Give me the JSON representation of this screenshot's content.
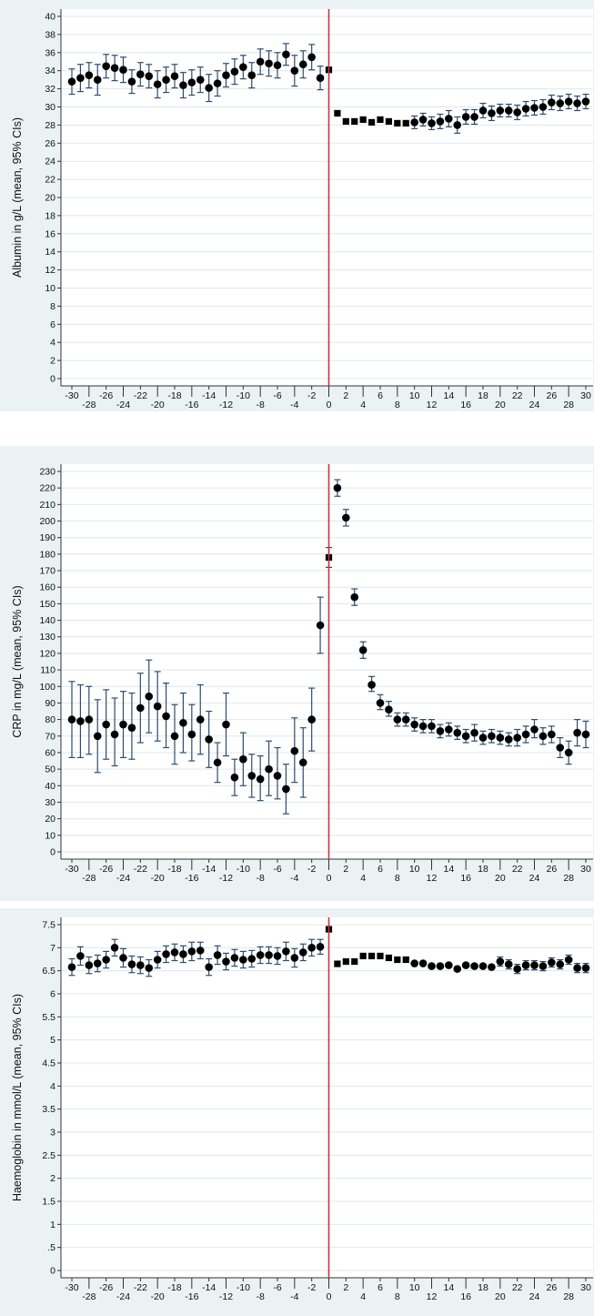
{
  "chart_data": [
    {
      "type": "scatter",
      "title": "",
      "xlabel": "",
      "ylabel": "Albumin in g/L (mean, 95% CIs)",
      "xlim": [
        -30,
        30
      ],
      "ylim": [
        0,
        40
      ],
      "x_ticks": [
        -30,
        -28,
        -26,
        -24,
        -22,
        -20,
        -18,
        -16,
        -14,
        -12,
        -10,
        -8,
        -6,
        -4,
        -2,
        0,
        2,
        4,
        6,
        8,
        10,
        12,
        14,
        16,
        18,
        20,
        22,
        24,
        26,
        28,
        30
      ],
      "y_ticks": [
        0,
        2,
        4,
        6,
        8,
        10,
        12,
        14,
        16,
        18,
        20,
        22,
        24,
        26,
        28,
        30,
        32,
        34,
        36,
        38,
        40
      ],
      "y_tick_labels": [
        "0",
        "2",
        "4",
        "6",
        "8",
        "10",
        "12",
        "14",
        "16",
        "18",
        "20",
        "22",
        "24",
        "26",
        "28",
        "30",
        "32",
        "34",
        "36",
        "38",
        "40"
      ],
      "reference_line_x": 0,
      "reference_line_color": "#cc3344",
      "grid": true,
      "series": [
        {
          "x": [
            -30,
            -29,
            -28,
            -27,
            -26,
            -25,
            -24,
            -23,
            -22,
            -21,
            -20,
            -19,
            -18,
            -17,
            -16,
            -15,
            -14,
            -13,
            -12,
            -11,
            -10,
            -9,
            -8,
            -7,
            -6,
            -5,
            -4,
            -3,
            -2,
            -1,
            0,
            1,
            2,
            3,
            4,
            5,
            6,
            7,
            8,
            9,
            10,
            11,
            12,
            13,
            14,
            15,
            16,
            17,
            18,
            19,
            20,
            21,
            22,
            23,
            24,
            25,
            26,
            27,
            28,
            29,
            30
          ],
          "y": [
            32.8,
            33.2,
            33.5,
            33.0,
            34.5,
            34.3,
            34.1,
            32.8,
            33.6,
            33.4,
            32.5,
            33.0,
            33.4,
            32.4,
            32.7,
            33.0,
            32.1,
            32.6,
            33.5,
            33.9,
            34.4,
            33.5,
            35.0,
            34.8,
            34.6,
            35.8,
            34.0,
            34.7,
            35.5,
            33.2,
            34.1,
            29.3,
            28.4,
            28.4,
            28.6,
            28.3,
            28.6,
            28.4,
            28.2,
            28.2,
            28.3,
            28.6,
            28.2,
            28.4,
            28.7,
            28.0,
            28.9,
            28.9,
            29.6,
            29.3,
            29.6,
            29.6,
            29.4,
            29.8,
            29.9,
            30.0,
            30.5,
            30.4,
            30.6,
            30.4,
            30.6
          ],
          "ci_low": [
            31.4,
            31.7,
            32.1,
            31.3,
            33.2,
            32.9,
            32.7,
            31.5,
            32.3,
            32.1,
            31.0,
            31.6,
            32.1,
            31.0,
            31.3,
            31.6,
            30.6,
            31.2,
            32.2,
            32.5,
            33.1,
            32.1,
            33.6,
            33.4,
            33.2,
            34.6,
            32.3,
            33.2,
            34.1,
            31.9,
            null,
            null,
            null,
            null,
            null,
            null,
            null,
            null,
            null,
            null,
            27.6,
            27.9,
            27.5,
            27.6,
            27.8,
            27.1,
            28.1,
            28.1,
            28.8,
            28.5,
            28.9,
            28.9,
            28.6,
            29.0,
            29.1,
            29.2,
            29.7,
            29.6,
            29.8,
            29.6,
            29.8
          ],
          "ci_high": [
            34.2,
            34.7,
            34.9,
            34.7,
            35.8,
            35.7,
            35.5,
            34.1,
            34.9,
            34.7,
            34.0,
            34.4,
            34.7,
            33.8,
            34.1,
            34.4,
            33.6,
            34.0,
            34.8,
            35.3,
            35.7,
            34.9,
            36.4,
            36.2,
            36.0,
            37.0,
            35.7,
            36.2,
            36.9,
            34.5,
            null,
            null,
            null,
            null,
            null,
            null,
            null,
            null,
            null,
            null,
            29.0,
            29.3,
            28.9,
            29.2,
            29.6,
            28.9,
            29.7,
            29.7,
            30.4,
            30.1,
            30.3,
            30.3,
            30.2,
            30.6,
            30.7,
            30.8,
            31.3,
            31.2,
            31.4,
            31.2,
            31.4
          ]
        }
      ]
    },
    {
      "type": "scatter",
      "title": "",
      "xlabel": "",
      "ylabel": "CRP in mg/L (mean, 95% CIs)",
      "xlim": [
        -30,
        30
      ],
      "ylim": [
        0,
        230
      ],
      "x_ticks": [
        -30,
        -28,
        -26,
        -24,
        -22,
        -20,
        -18,
        -16,
        -14,
        -12,
        -10,
        -8,
        -6,
        -4,
        -2,
        0,
        2,
        4,
        6,
        8,
        10,
        12,
        14,
        16,
        18,
        20,
        22,
        24,
        26,
        28,
        30
      ],
      "y_ticks": [
        0,
        10,
        20,
        30,
        40,
        50,
        60,
        70,
        80,
        90,
        100,
        110,
        120,
        130,
        140,
        150,
        160,
        170,
        180,
        190,
        200,
        210,
        220,
        230
      ],
      "y_tick_labels": [
        "0",
        "10",
        "20",
        "30",
        "40",
        "50",
        "60",
        "70",
        "80",
        "90",
        "100",
        "110",
        "120",
        "130",
        "140",
        "150",
        "160",
        "170",
        "180",
        "190",
        "200",
        "210",
        "220",
        "230"
      ],
      "reference_line_x": 0,
      "reference_line_color": "#cc3344",
      "grid": true,
      "series": [
        {
          "x": [
            -30,
            -29,
            -28,
            -27,
            -26,
            -25,
            -24,
            -23,
            -22,
            -21,
            -20,
            -19,
            -18,
            -17,
            -16,
            -15,
            -14,
            -13,
            -12,
            -11,
            -10,
            -9,
            -8,
            -7,
            -6,
            -5,
            -4,
            -3,
            -2,
            -1,
            0,
            1,
            2,
            3,
            4,
            5,
            6,
            7,
            8,
            9,
            10,
            11,
            12,
            13,
            14,
            15,
            16,
            17,
            18,
            19,
            20,
            21,
            22,
            23,
            24,
            25,
            26,
            27,
            28,
            29,
            30
          ],
          "y": [
            80,
            79,
            80,
            70,
            77,
            71,
            77,
            75,
            87,
            94,
            88,
            82,
            70,
            78,
            71,
            80,
            68,
            54,
            77,
            45,
            56,
            46,
            44,
            50,
            46,
            38,
            61,
            54,
            80,
            137,
            178,
            220,
            202,
            154,
            122,
            101,
            90,
            86,
            80,
            80,
            77,
            76,
            76,
            73,
            74,
            72,
            70,
            72,
            69,
            70,
            69,
            68,
            69,
            71,
            74,
            70,
            71,
            63,
            60,
            72,
            71
          ],
          "ci_low": [
            57,
            57,
            59,
            48,
            56,
            52,
            57,
            56,
            66,
            72,
            67,
            63,
            53,
            60,
            55,
            59,
            51,
            42,
            58,
            34,
            40,
            33,
            31,
            34,
            32,
            23,
            42,
            33,
            61,
            120,
            172,
            215,
            197,
            149,
            117,
            97,
            86,
            82,
            76,
            76,
            73,
            72,
            72,
            69,
            70,
            68,
            66,
            67,
            65,
            66,
            65,
            64,
            64,
            66,
            69,
            65,
            66,
            57,
            53,
            64,
            63
          ],
          "ci_high": [
            103,
            101,
            100,
            92,
            98,
            93,
            97,
            96,
            108,
            116,
            109,
            102,
            89,
            96,
            89,
            101,
            85,
            66,
            96,
            56,
            72,
            59,
            58,
            67,
            63,
            53,
            81,
            75,
            99,
            154,
            184,
            225,
            207,
            159,
            127,
            106,
            95,
            91,
            84,
            84,
            81,
            80,
            80,
            77,
            78,
            76,
            74,
            77,
            73,
            74,
            73,
            72,
            74,
            76,
            80,
            75,
            76,
            69,
            67,
            80,
            79
          ]
        }
      ]
    },
    {
      "type": "scatter",
      "title": "",
      "xlabel": "",
      "ylabel": "Haemoglobin in mmol/L (mean, 95% CIs)",
      "xlim": [
        -30,
        30
      ],
      "ylim": [
        0,
        7.5
      ],
      "x_ticks": [
        -30,
        -28,
        -26,
        -24,
        -22,
        -20,
        -18,
        -16,
        -14,
        -12,
        -10,
        -8,
        -6,
        -4,
        -2,
        0,
        2,
        4,
        6,
        8,
        10,
        12,
        14,
        16,
        18,
        20,
        22,
        24,
        26,
        28,
        30
      ],
      "y_ticks": [
        0,
        0.5,
        1,
        1.5,
        2,
        2.5,
        3,
        3.5,
        4,
        4.5,
        5,
        5.5,
        6,
        6.5,
        7,
        7.5
      ],
      "y_tick_labels": [
        "0",
        ".5",
        "1",
        "1.5",
        "2",
        "2.5",
        "3",
        "3.5",
        "4",
        "4.5",
        "5",
        "5.5",
        "6",
        "6.5",
        "7",
        "7.5"
      ],
      "reference_line_x": 0,
      "reference_line_color": "#cc3344",
      "grid": true,
      "series": [
        {
          "x": [
            -30,
            -29,
            -28,
            -27,
            -26,
            -25,
            -24,
            -23,
            -22,
            -21,
            -20,
            -19,
            -18,
            -17,
            -16,
            -15,
            -14,
            -13,
            -12,
            -11,
            -10,
            -9,
            -8,
            -7,
            -6,
            -5,
            -4,
            -3,
            -2,
            -1,
            0,
            1,
            2,
            3,
            4,
            5,
            6,
            7,
            8,
            9,
            10,
            11,
            12,
            13,
            14,
            15,
            16,
            17,
            18,
            19,
            20,
            21,
            22,
            23,
            24,
            25,
            26,
            27,
            28,
            29,
            30
          ],
          "y": [
            6.58,
            6.82,
            6.62,
            6.66,
            6.74,
            7.0,
            6.78,
            6.64,
            6.62,
            6.56,
            6.74,
            6.86,
            6.9,
            6.86,
            6.92,
            6.94,
            6.58,
            6.84,
            6.7,
            6.78,
            6.74,
            6.76,
            6.84,
            6.84,
            6.82,
            6.92,
            6.78,
            6.9,
            7.0,
            7.02,
            7.4,
            6.65,
            6.7,
            6.7,
            6.82,
            6.82,
            6.82,
            6.78,
            6.74,
            6.74,
            6.66,
            6.66,
            6.6,
            6.6,
            6.62,
            6.54,
            6.62,
            6.6,
            6.6,
            6.58,
            6.7,
            6.64,
            6.54,
            6.62,
            6.62,
            6.6,
            6.68,
            6.64,
            6.74,
            6.56,
            6.56
          ],
          "ci_low": [
            6.4,
            6.62,
            6.44,
            6.48,
            6.56,
            6.82,
            6.58,
            6.46,
            6.44,
            6.38,
            6.56,
            6.68,
            6.72,
            6.68,
            6.72,
            6.76,
            6.4,
            6.64,
            6.52,
            6.6,
            6.56,
            6.58,
            6.66,
            6.66,
            6.64,
            6.72,
            6.58,
            6.72,
            6.82,
            6.86,
            null,
            null,
            null,
            null,
            null,
            null,
            null,
            null,
            null,
            null,
            null,
            null,
            null,
            null,
            null,
            null,
            null,
            null,
            null,
            null,
            6.6,
            6.54,
            6.44,
            6.52,
            6.52,
            6.5,
            6.58,
            6.54,
            6.64,
            6.46,
            6.46
          ],
          "ci_high": [
            6.76,
            7.02,
            6.8,
            6.84,
            6.92,
            7.18,
            6.98,
            6.82,
            6.8,
            6.74,
            6.92,
            7.04,
            7.08,
            7.04,
            7.12,
            7.12,
            6.76,
            7.04,
            6.88,
            6.96,
            6.92,
            6.94,
            7.02,
            7.02,
            7.0,
            7.12,
            6.98,
            7.08,
            7.18,
            7.18,
            null,
            null,
            null,
            null,
            null,
            null,
            null,
            null,
            null,
            null,
            null,
            null,
            null,
            null,
            null,
            null,
            null,
            null,
            null,
            null,
            6.8,
            6.74,
            6.64,
            6.72,
            6.72,
            6.7,
            6.78,
            6.74,
            6.84,
            6.66,
            6.66
          ]
        }
      ]
    }
  ],
  "colors": {
    "plot_background": "#ffffff",
    "outer_background": "#eaf2f3",
    "grid": "#dfe8ec",
    "axis": "#333333",
    "marker": "#000000",
    "ci": "#2e4c6d",
    "reference_line": "#cc3344"
  }
}
